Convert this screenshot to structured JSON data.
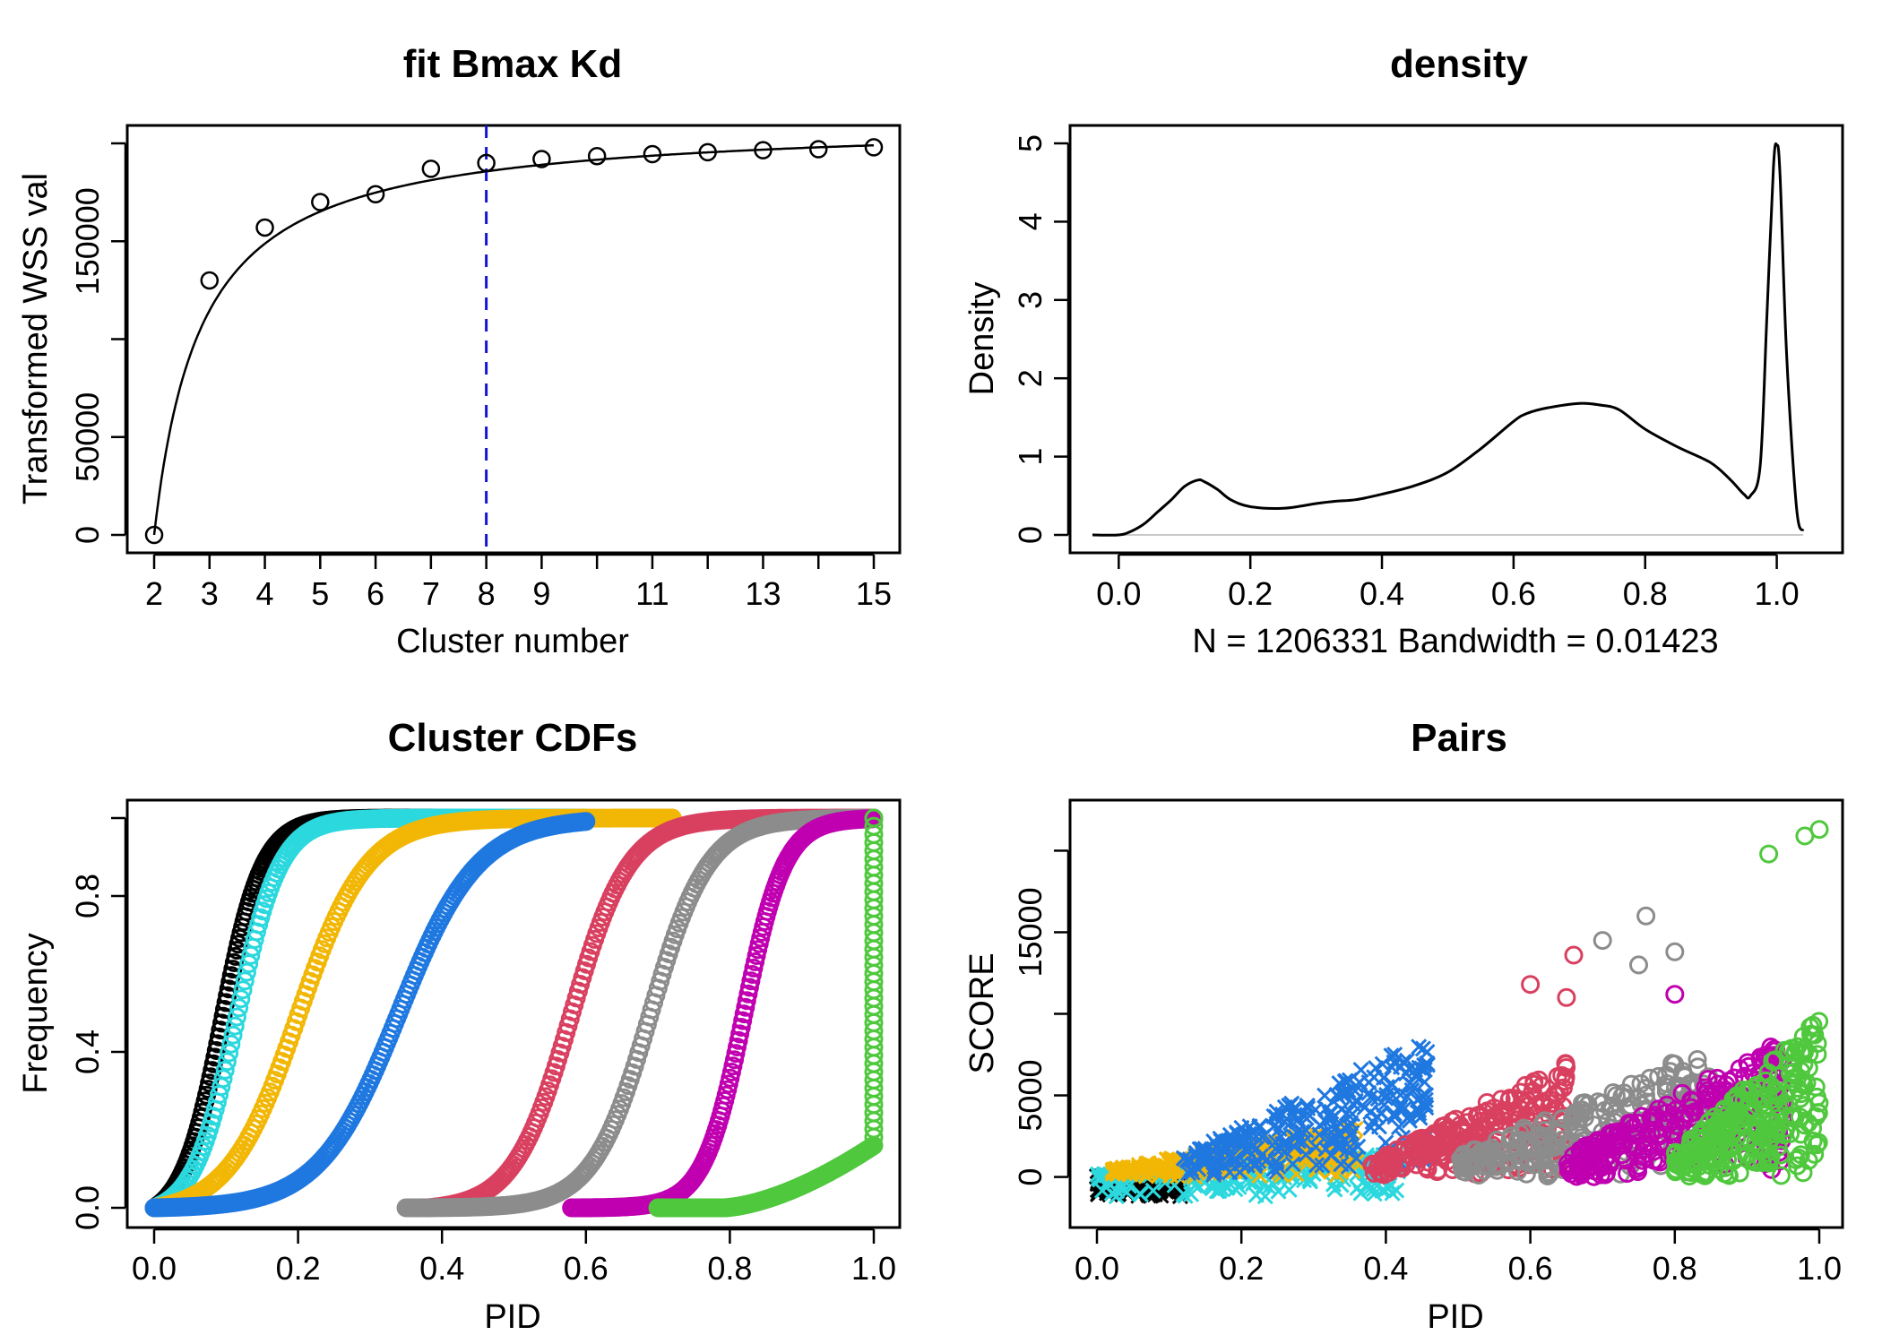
{
  "chart_data": [
    {
      "id": "fit",
      "type": "scatter",
      "title": "fit Bmax Kd",
      "xlabel": "Cluster number",
      "ylabel": "Transformed WSS val",
      "xlim": [
        2,
        15
      ],
      "ylim": [
        0,
        200000
      ],
      "xticks": [
        2,
        3,
        4,
        5,
        6,
        7,
        8,
        9,
        11,
        13,
        15
      ],
      "yticks": [
        0,
        50000,
        150000
      ],
      "points": {
        "x": [
          2,
          3,
          4,
          5,
          6,
          7,
          8,
          9,
          10,
          11,
          12,
          13,
          14,
          15
        ],
        "y": [
          0,
          130000,
          157000,
          170000,
          174000,
          187000,
          190000,
          192000,
          193500,
          194500,
          195500,
          196500,
          197000,
          198000
        ]
      },
      "fit_curve": {
        "type": "Bmax*(x-2)/(Kd+(x-2))",
        "Bmax": 212000,
        "Kd": 0.85
      },
      "vline": {
        "x": 8,
        "color": "#1515d6",
        "style": "dashed"
      },
      "grid": false
    },
    {
      "id": "density",
      "type": "line",
      "title": "density",
      "xlabel": "N = 1206331   Bandwidth = 0.01423",
      "ylabel": "Density",
      "xlim": [
        -0.05,
        1.05
      ],
      "ylim": [
        0,
        5
      ],
      "xticks": [
        "0.0",
        "0.2",
        "0.4",
        "0.6",
        "0.8",
        "1.0"
      ],
      "yticks": [
        "0",
        "1",
        "2",
        "3",
        "4",
        "5"
      ],
      "x": [
        -0.04,
        0.0,
        0.02,
        0.04,
        0.06,
        0.08,
        0.1,
        0.12,
        0.13,
        0.15,
        0.17,
        0.2,
        0.25,
        0.3,
        0.33,
        0.36,
        0.4,
        0.45,
        0.5,
        0.55,
        0.6,
        0.62,
        0.65,
        0.7,
        0.73,
        0.76,
        0.8,
        0.85,
        0.9,
        0.93,
        0.95,
        0.96,
        0.975,
        0.985,
        0.995,
        1.0,
        1.005,
        1.015,
        1.03,
        1.04
      ],
      "y": [
        0.0,
        0.0,
        0.05,
        0.15,
        0.3,
        0.45,
        0.62,
        0.7,
        0.68,
        0.58,
        0.45,
        0.36,
        0.34,
        0.4,
        0.43,
        0.45,
        0.52,
        0.63,
        0.8,
        1.1,
        1.45,
        1.55,
        1.62,
        1.68,
        1.66,
        1.6,
        1.35,
        1.12,
        0.92,
        0.7,
        0.52,
        0.5,
        0.9,
        2.8,
        4.7,
        4.98,
        4.6,
        2.3,
        0.35,
        0.05
      ],
      "baseline": 0,
      "grid": false
    },
    {
      "id": "cdf",
      "type": "scatter",
      "title": "Cluster CDFs",
      "xlabel": "PID",
      "ylabel": "Frequency",
      "xlim": [
        0,
        1
      ],
      "ylim": [
        0,
        1
      ],
      "xticks": [
        "0.0",
        "0.2",
        "0.4",
        "0.6",
        "0.8",
        "1.0"
      ],
      "yticks": [
        "0.0",
        "0.4",
        "0.8"
      ],
      "series": [
        {
          "color": "#000000",
          "mu": 0.095,
          "s": 0.028,
          "xmin": 0.0,
          "xmax": 0.42
        },
        {
          "color": "#2bd8de",
          "mu": 0.115,
          "s": 0.03,
          "xmin": 0.0,
          "xmax": 0.6
        },
        {
          "color": "#f2b705",
          "mu": 0.2,
          "s": 0.048,
          "xmin": 0.0,
          "xmax": 0.72
        },
        {
          "color": "#1f78e0",
          "mu": 0.34,
          "s": 0.055,
          "xmin": 0.0,
          "xmax": 0.6
        },
        {
          "color": "#d94060",
          "mu": 0.58,
          "s": 0.04,
          "xmin": 0.38,
          "xmax": 1.0
        },
        {
          "color": "#8c8c8c",
          "mu": 0.69,
          "s": 0.04,
          "xmin": 0.35,
          "xmax": 1.0
        },
        {
          "color": "#c000b0",
          "mu": 0.82,
          "s": 0.028,
          "xmin": 0.58,
          "xmax": 1.0
        },
        {
          "color": "#50c83e",
          "mu": 1.0,
          "s": 0.0,
          "xmin": 0.7,
          "xmax": 1.0,
          "step_at": 1.0,
          "base": 0.16
        }
      ],
      "grid": false
    },
    {
      "id": "pairs",
      "type": "scatter",
      "title": "Pairs",
      "xlabel": "PID",
      "ylabel": "SCORE",
      "xlim": [
        0,
        1
      ],
      "ylim": [
        -2000,
        22000
      ],
      "xticks": [
        "0.0",
        "0.2",
        "0.4",
        "0.6",
        "0.8",
        "1.0"
      ],
      "yticks": [
        0,
        5000,
        15000
      ],
      "clusters": [
        {
          "color": "#000000",
          "x": [
            0.0,
            0.12
          ],
          "ymax": 300,
          "marker": "x"
        },
        {
          "color": "#2bd8de",
          "x": [
            0.0,
            0.42
          ],
          "ymax": 1500,
          "marker": "x"
        },
        {
          "color": "#f2b705",
          "x": [
            0.02,
            0.36
          ],
          "ymax": 3200,
          "marker": "x"
        },
        {
          "color": "#1f78e0",
          "x": [
            0.12,
            0.46
          ],
          "ymax": 8600,
          "marker": "x"
        },
        {
          "color": "#d94060",
          "x": [
            0.38,
            0.65
          ],
          "ymax": 7000,
          "marker": "o"
        },
        {
          "color": "#8c8c8c",
          "x": [
            0.5,
            0.85
          ],
          "ymax": 8200,
          "marker": "o"
        },
        {
          "color": "#c000b0",
          "x": [
            0.65,
            0.95
          ],
          "ymax": 8500,
          "marker": "o"
        },
        {
          "color": "#50c83e",
          "x": [
            0.8,
            1.0
          ],
          "ymax": 9800,
          "marker": "o"
        }
      ],
      "outliers": [
        {
          "x": 0.93,
          "y": 19800,
          "color": "#50c83e"
        },
        {
          "x": 0.98,
          "y": 20900,
          "color": "#50c83e"
        },
        {
          "x": 1.0,
          "y": 21300,
          "color": "#50c83e"
        },
        {
          "x": 0.76,
          "y": 16000,
          "color": "#8c8c8c"
        },
        {
          "x": 0.7,
          "y": 14500,
          "color": "#8c8c8c"
        },
        {
          "x": 0.75,
          "y": 13000,
          "color": "#8c8c8c"
        },
        {
          "x": 0.8,
          "y": 13800,
          "color": "#8c8c8c"
        },
        {
          "x": 0.66,
          "y": 13600,
          "color": "#d94060"
        },
        {
          "x": 0.6,
          "y": 11800,
          "color": "#d94060"
        },
        {
          "x": 0.8,
          "y": 11200,
          "color": "#c000b0"
        },
        {
          "x": 0.65,
          "y": 11000,
          "color": "#d94060"
        }
      ],
      "grid": false
    }
  ]
}
